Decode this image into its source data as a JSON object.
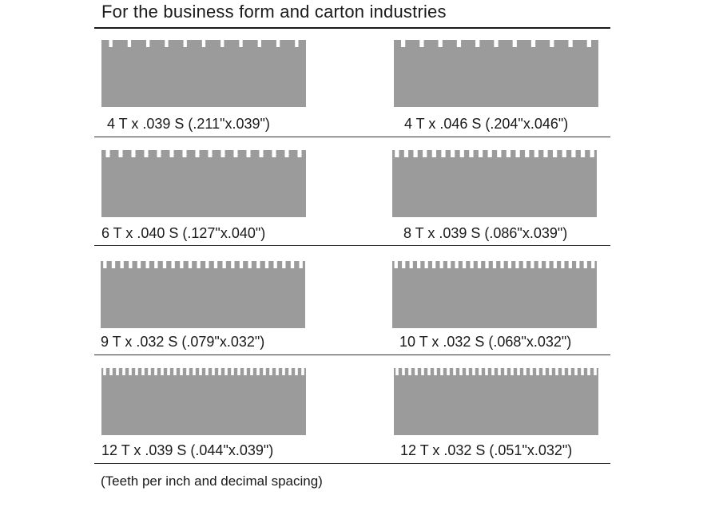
{
  "header": {
    "title": "For the business form and carton industries"
  },
  "colors": {
    "blade_fill": "#9b9b9b",
    "rule": "#1a1a1a"
  },
  "samples": [
    {
      "label": "4 T x .039 S (.211\"x.039\")",
      "teeth_per_inch": 4,
      "spacing": ".039",
      "pitch": ".211\"",
      "gap": ".039\""
    },
    {
      "label": "4 T x .046 S (.204\"x.046\")",
      "teeth_per_inch": 4,
      "spacing": ".046",
      "pitch": ".204\"",
      "gap": ".046\""
    },
    {
      "label": "6 T x .040 S (.127\"x.040\")",
      "teeth_per_inch": 6,
      "spacing": ".040",
      "pitch": ".127\"",
      "gap": ".040\""
    },
    {
      "label": "8 T x .039 S (.086\"x.039\")",
      "teeth_per_inch": 8,
      "spacing": ".039",
      "pitch": ".086\"",
      "gap": ".039\""
    },
    {
      "label": "9 T x .032 S (.079\"x.032\")",
      "teeth_per_inch": 9,
      "spacing": ".032",
      "pitch": ".079\"",
      "gap": ".032\""
    },
    {
      "label": "10 T x .032 S (.068\"x.032\")",
      "teeth_per_inch": 10,
      "spacing": ".032",
      "pitch": ".068\"",
      "gap": ".032\""
    },
    {
      "label": "12 T x .039 S (.044\"x.039\")",
      "teeth_per_inch": 12,
      "spacing": ".039",
      "pitch": ".044\"",
      "gap": ".039\""
    },
    {
      "label": "12 T x .032 S (.051\"x.032\")",
      "teeth_per_inch": 12,
      "spacing": ".032",
      "pitch": ".051\"",
      "gap": ".032\""
    }
  ],
  "footnote": "(Teeth per inch and decimal spacing)"
}
